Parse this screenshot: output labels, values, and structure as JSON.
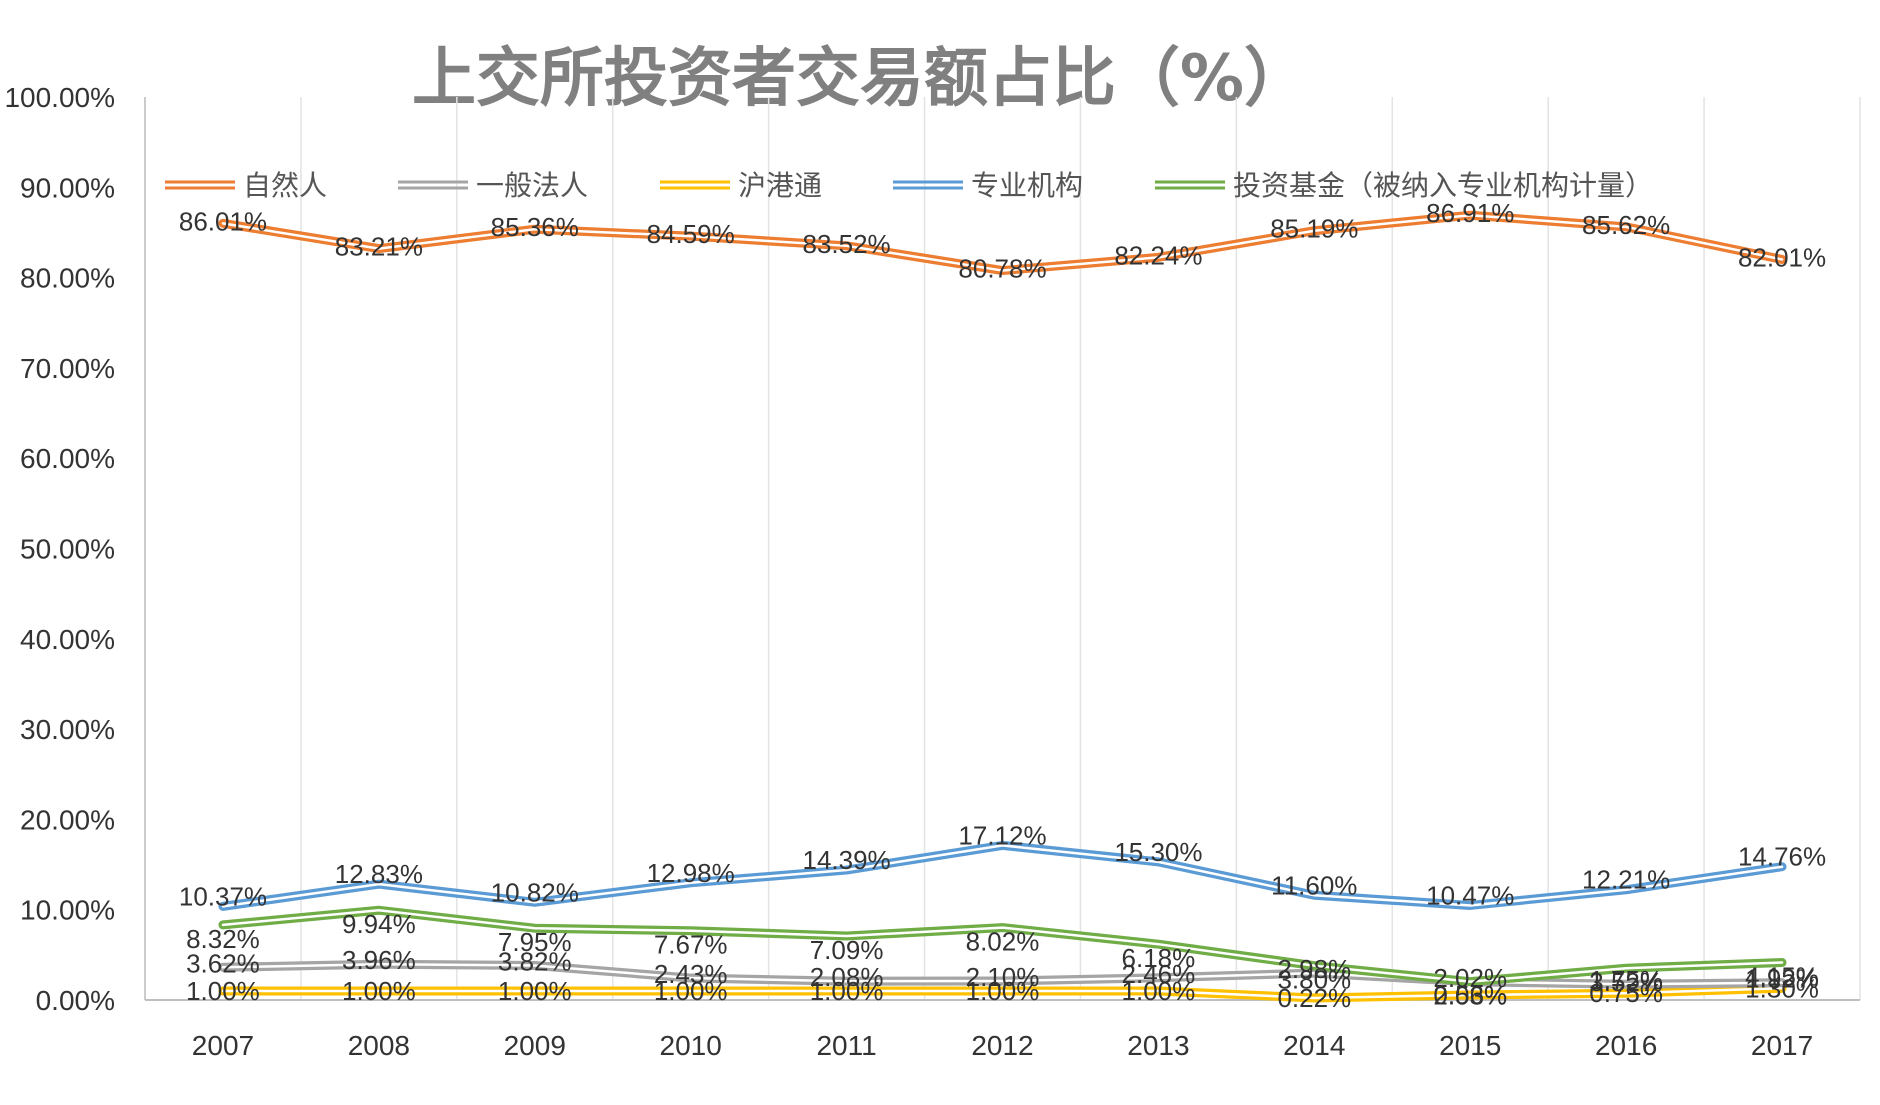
{
  "chart_data": {
    "type": "line",
    "title": "上交所投资者交易额占比（%）",
    "xlabel": "",
    "ylabel": "",
    "ylim": [
      0,
      100
    ],
    "y_ticks": [
      "0.00%",
      "10.00%",
      "20.00%",
      "30.00%",
      "40.00%",
      "50.00%",
      "60.00%",
      "70.00%",
      "80.00%",
      "90.00%",
      "100.00%"
    ],
    "grid": "vertical",
    "legend_position": "top",
    "categories": [
      "2007",
      "2008",
      "2009",
      "2010",
      "2011",
      "2012",
      "2013",
      "2014",
      "2015",
      "2016",
      "2017"
    ],
    "series": [
      {
        "name": "自然人",
        "color": "#ED7D31",
        "values": [
          86.01,
          83.21,
          85.36,
          84.59,
          83.52,
          80.78,
          82.24,
          85.19,
          86.91,
          85.62,
          82.01
        ],
        "labels": [
          "86.01%",
          "83.21%",
          "85.36%",
          "84.59%",
          "83.52%",
          "80.78%",
          "82.24%",
          "85.19%",
          "86.91%",
          "85.62%",
          "82.01%"
        ]
      },
      {
        "name": "一般法人",
        "color": "#A5A5A5",
        "values": [
          3.62,
          3.96,
          3.82,
          2.43,
          2.08,
          2.1,
          2.46,
          2.98,
          2.02,
          1.75,
          1.92
        ],
        "labels": [
          "3.62%",
          "3.96%",
          "3.82%",
          "2.43%",
          "2.08%",
          "2.10%",
          "2.46%",
          "2.98%",
          "2.02%",
          "1.75%",
          "1.92%"
        ]
      },
      {
        "name": "沪港通",
        "color": "#FFC000",
        "values": [
          1.0,
          1.0,
          1.0,
          1.0,
          1.0,
          1.0,
          1.0,
          0.22,
          0.56,
          0.75,
          1.3
        ],
        "labels": [
          "1.00%",
          "1.00%",
          "1.00%",
          "1.00%",
          "1.00%",
          "1.00%",
          "1.00%",
          "0.22%",
          "0.56%",
          "0.75%",
          "1.30%"
        ]
      },
      {
        "name": "专业机构",
        "color": "#5B9BD5",
        "values": [
          10.37,
          12.83,
          10.82,
          12.98,
          14.39,
          17.12,
          15.3,
          11.6,
          10.47,
          12.21,
          14.76
        ],
        "labels": [
          "10.37%",
          "12.83%",
          "10.82%",
          "12.98%",
          "14.39%",
          "17.12%",
          "15.30%",
          "11.60%",
          "10.47%",
          "12.21%",
          "14.76%"
        ]
      },
      {
        "name": "投资基金（被纳入专业机构计量）",
        "color": "#70AD47",
        "values": [
          8.32,
          9.94,
          7.95,
          7.67,
          7.09,
          8.02,
          6.18,
          3.8,
          2.03,
          3.52,
          4.15
        ],
        "labels": [
          "8.32%",
          "9.94%",
          "7.95%",
          "7.67%",
          "7.09%",
          "8.02%",
          "6.18%",
          "3.80%",
          "2.03%",
          "3.52%",
          "4.15%"
        ]
      }
    ]
  }
}
